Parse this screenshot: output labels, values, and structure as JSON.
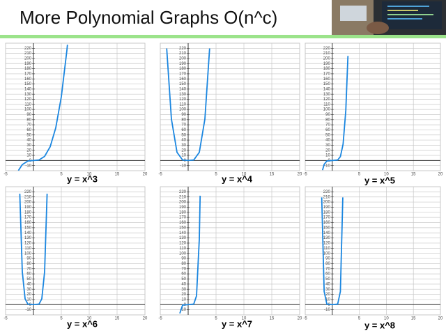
{
  "slide": {
    "title": "More Polynomial Graphs",
    "title_emphasis": "O(n^c)"
  },
  "chart_data": [
    {
      "type": "line",
      "title": "y  = x^3",
      "color": "#1a86e0",
      "x": [
        -2.7,
        -2,
        -1,
        0,
        1,
        2,
        3,
        4,
        5,
        6,
        6.1
      ],
      "values": [
        -19.7,
        -8,
        -1,
        0,
        1,
        8,
        27,
        64,
        125,
        216,
        227
      ],
      "xlim": [
        -5,
        20
      ],
      "ylim": [
        -20,
        230
      ],
      "xticks": [
        -5,
        5,
        10,
        15,
        20
      ],
      "yticks": [
        -10,
        0,
        10,
        20,
        30,
        40,
        50,
        60,
        70,
        80,
        90,
        100,
        110,
        120,
        130,
        140,
        150,
        160,
        170,
        180,
        190,
        200,
        210,
        220
      ],
      "grid": true
    },
    {
      "type": "line",
      "title": "y  = x^4",
      "color": "#1a86e0",
      "x": [
        -3.85,
        -3,
        -2,
        -1,
        0,
        1,
        2,
        3,
        3.85
      ],
      "values": [
        219.7,
        81,
        16,
        1,
        0,
        1,
        16,
        81,
        219.7
      ],
      "xlim": [
        -5,
        20
      ],
      "ylim": [
        -20,
        230
      ],
      "xticks": [
        -5,
        5,
        10,
        15,
        20
      ],
      "yticks": [
        -10,
        0,
        10,
        20,
        30,
        40,
        50,
        60,
        70,
        80,
        90,
        100,
        110,
        120,
        130,
        140,
        150,
        160,
        170,
        180,
        190,
        200,
        210,
        220
      ],
      "grid": true
    },
    {
      "type": "line",
      "title": "y  = x^5",
      "color": "#1a86e0",
      "x": [
        -1.8,
        -1.5,
        -1,
        0,
        1,
        1.5,
        2,
        2.5,
        2.9
      ],
      "values": [
        -18.9,
        -7.6,
        -1,
        0,
        1,
        7.6,
        32,
        97.7,
        205.1
      ],
      "xlim": [
        -5,
        20
      ],
      "ylim": [
        -20,
        230
      ],
      "xticks": [
        -5,
        5,
        10,
        15,
        20
      ],
      "yticks": [
        -10,
        0,
        10,
        20,
        30,
        40,
        50,
        60,
        70,
        80,
        90,
        100,
        110,
        120,
        130,
        140,
        150,
        160,
        170,
        180,
        190,
        200,
        210,
        220
      ],
      "grid": true
    },
    {
      "type": "line",
      "title": "y  = x^6",
      "color": "#1a86e0",
      "x": [
        -2.45,
        -2,
        -1.5,
        -1,
        0,
        1,
        1.5,
        2,
        2.45
      ],
      "values": [
        216.3,
        64,
        11.4,
        1,
        0,
        1,
        11.4,
        64,
        216.3
      ],
      "xlim": [
        -5,
        20
      ],
      "ylim": [
        -20,
        230
      ],
      "xticks": [
        -5,
        5,
        10,
        15,
        20
      ],
      "yticks": [
        -10,
        0,
        10,
        20,
        30,
        40,
        50,
        60,
        70,
        80,
        90,
        100,
        110,
        120,
        130,
        140,
        150,
        160,
        170,
        180,
        190,
        200,
        210,
        220
      ],
      "grid": true
    },
    {
      "type": "line",
      "title": "y  = x^7",
      "color": "#1a86e0",
      "x": [
        -1.5,
        -1,
        0,
        1,
        1.5,
        2,
        2.15
      ],
      "values": [
        -17.1,
        -1,
        0,
        1,
        17.1,
        128,
        212.4
      ],
      "xlim": [
        -5,
        20
      ],
      "ylim": [
        -20,
        230
      ],
      "xticks": [
        -5,
        5,
        10,
        15,
        20
      ],
      "yticks": [
        -10,
        0,
        10,
        20,
        30,
        40,
        50,
        60,
        70,
        80,
        90,
        100,
        110,
        120,
        130,
        140,
        150,
        160,
        170,
        180,
        190,
        200,
        210,
        220
      ],
      "grid": true
    },
    {
      "type": "line",
      "title": "y  = x^8",
      "color": "#1a86e0",
      "x": [
        -1.95,
        -1.5,
        -1,
        0,
        1,
        1.5,
        1.95
      ],
      "values": [
        209.1,
        25.6,
        1,
        0,
        1,
        25.6,
        209.1
      ],
      "xlim": [
        -5,
        20
      ],
      "ylim": [
        -20,
        230
      ],
      "xticks": [
        -5,
        5,
        10,
        15,
        20
      ],
      "yticks": [
        -10,
        0,
        10,
        20,
        30,
        40,
        50,
        60,
        70,
        80,
        90,
        100,
        110,
        120,
        130,
        140,
        150,
        160,
        170,
        180,
        190,
        200,
        210,
        220
      ],
      "grid": true
    }
  ]
}
